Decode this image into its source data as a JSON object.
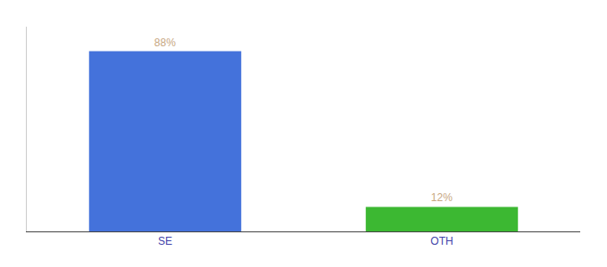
{
  "chart_data": {
    "type": "bar",
    "categories": [
      "SE",
      "OTH"
    ],
    "values": [
      88,
      12
    ],
    "value_labels": [
      "88%",
      "12%"
    ],
    "colors": [
      "#4472db",
      "#3cb832"
    ],
    "ylim": [
      0,
      100
    ],
    "grid": false,
    "data_labels": true,
    "tick_labels": "x"
  }
}
